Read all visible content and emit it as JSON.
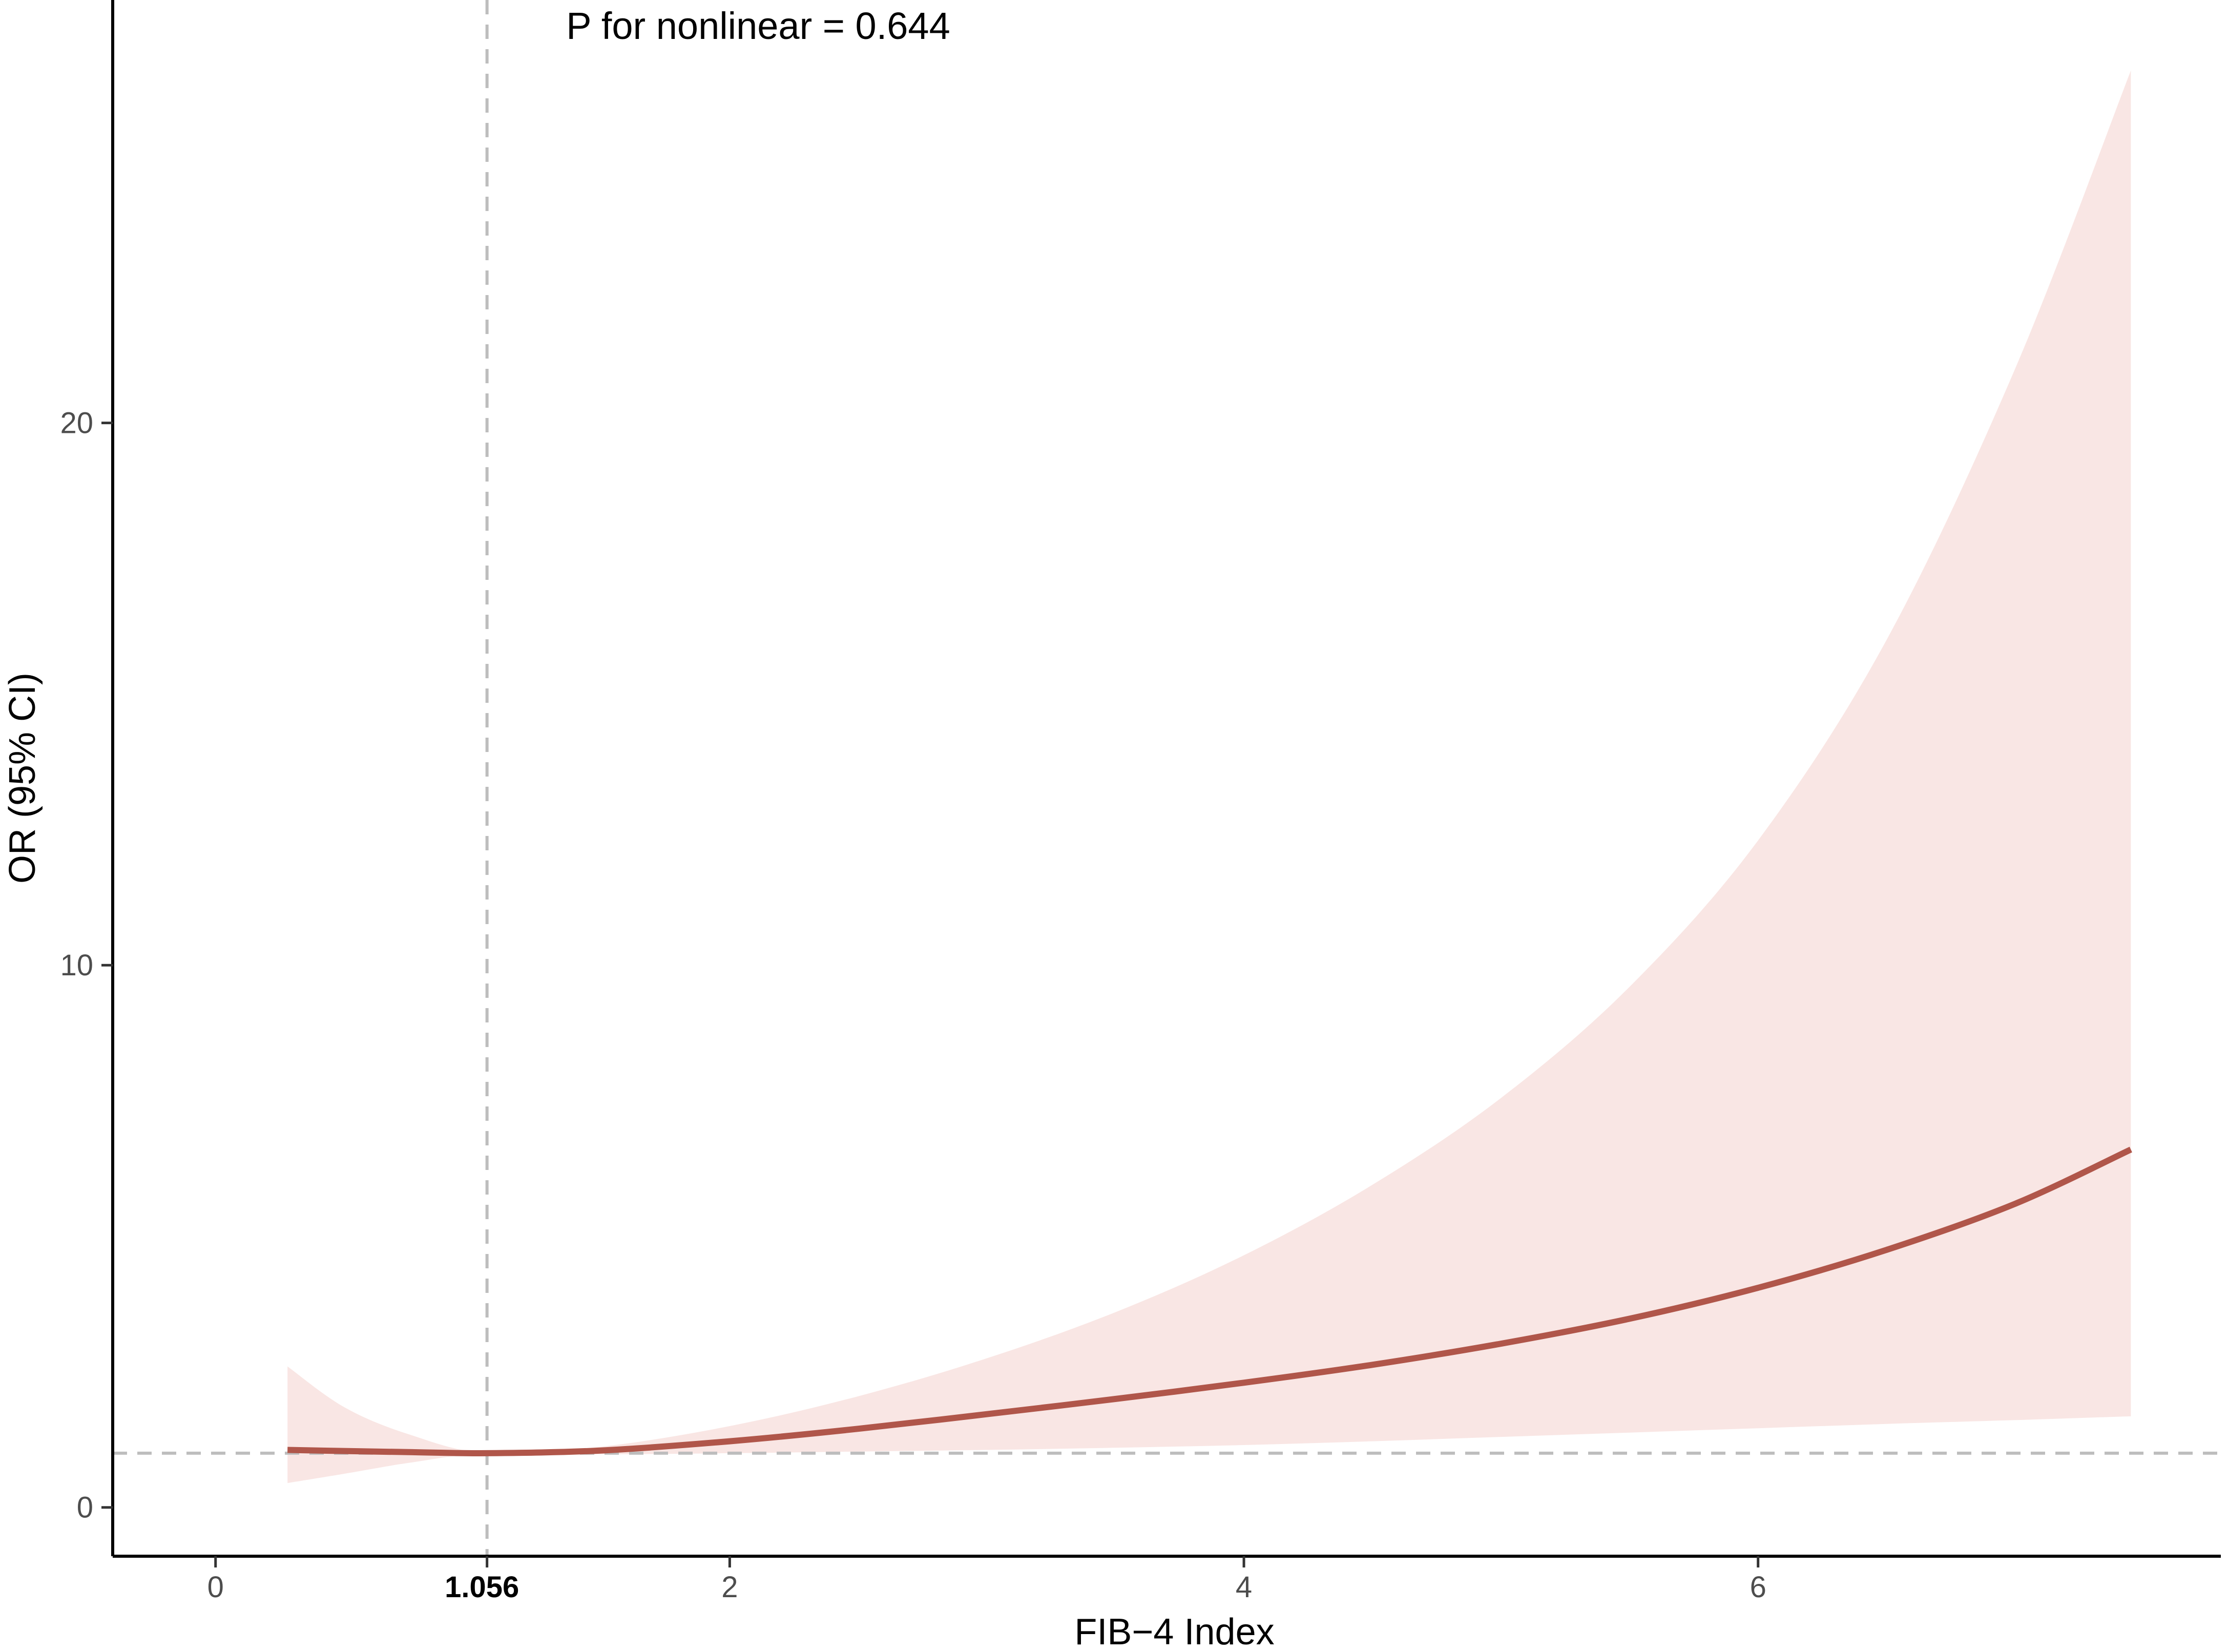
{
  "chart_data": {
    "type": "line",
    "title": "",
    "xlabel": "FIB−4 Index",
    "ylabel": "OR (95% CI)",
    "xlim": [
      -0.4,
      7.8
    ],
    "ylim": [
      -0.9,
      27.8
    ],
    "x_ticks": [
      0,
      2,
      4,
      6
    ],
    "x_tick_labels": [
      "0",
      "2",
      "4",
      "6"
    ],
    "y_ticks": [
      0,
      10,
      20
    ],
    "y_tick_labels": [
      "0",
      "10",
      "20"
    ],
    "grid": false,
    "legend": "none",
    "annotation": "P for nonlinear = 0.644",
    "reference_x": 1.056,
    "reference_x_label": "1.056",
    "reference_y": 1,
    "colors": {
      "line": "#b0564a",
      "band": "#f9e6e4",
      "reference": "#bdbdbd",
      "axis": "#000000"
    },
    "series": [
      {
        "x": [
          0.28,
          0.5,
          0.75,
          1.056,
          1.5,
          2.0,
          2.5,
          3.0,
          3.5,
          4.0,
          4.5,
          5.0,
          5.5,
          6.0,
          6.5,
          7.0,
          7.45
        ],
        "y": [
          1.06,
          1.04,
          1.02,
          1.0,
          1.05,
          1.22,
          1.45,
          1.72,
          2.0,
          2.3,
          2.63,
          3.02,
          3.48,
          4.05,
          4.75,
          5.6,
          6.6
        ],
        "lower": [
          0.45,
          0.62,
          0.82,
          1.0,
          0.98,
          1.0,
          1.03,
          1.06,
          1.1,
          1.15,
          1.22,
          1.3,
          1.38,
          1.46,
          1.54,
          1.61,
          1.68
        ],
        "upper": [
          2.6,
          1.85,
          1.35,
          1.0,
          1.12,
          1.5,
          2.05,
          2.75,
          3.6,
          4.65,
          5.95,
          7.55,
          9.6,
          12.3,
          16.0,
          21.0,
          26.5
        ]
      }
    ]
  }
}
